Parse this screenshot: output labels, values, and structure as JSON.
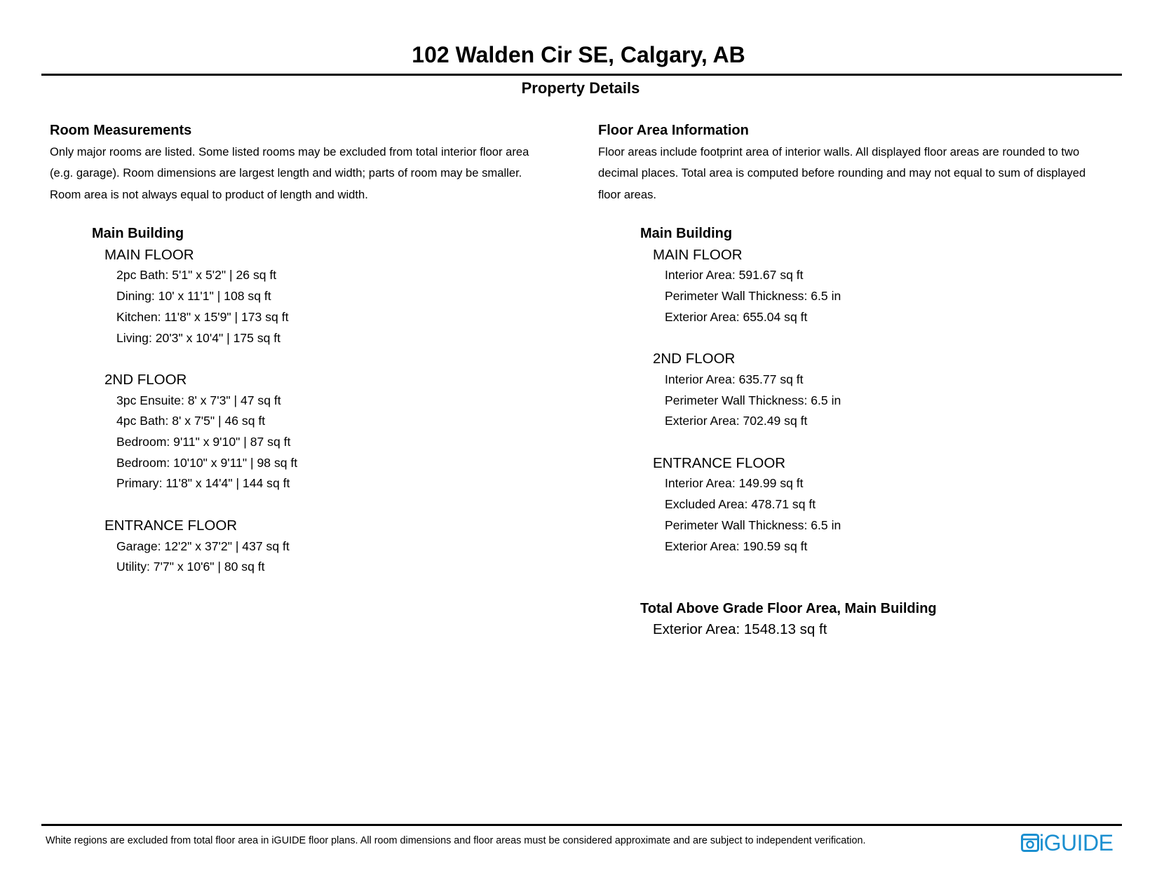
{
  "title": "102 Walden Cir SE, Calgary, AB",
  "subtitle": "Property Details",
  "room_measurements": {
    "heading": "Room Measurements",
    "paragraph_lines": [
      "Only major rooms are listed. Some listed rooms may be excluded from total interior floor area",
      "(e.g. garage). Room dimensions are largest length and width; parts of room may be smaller.",
      "Room area is not always equal to product of length and width."
    ],
    "building": "Main Building",
    "floors": [
      {
        "name": "MAIN FLOOR",
        "items": [
          "2pc Bath: 5'1\" x 5'2\" | 26 sq ft",
          "Dining: 10' x 11'1\" | 108 sq ft",
          "Kitchen: 11'8\" x 15'9\" | 173 sq ft",
          "Living: 20'3\" x 10'4\" | 175 sq ft"
        ]
      },
      {
        "name": "2ND FLOOR",
        "items": [
          "3pc Ensuite: 8' x 7'3\" | 47 sq ft",
          "4pc Bath: 8' x 7'5\" | 46 sq ft",
          "Bedroom: 9'11\" x 9'10\" | 87 sq ft",
          "Bedroom: 10'10\" x 9'11\" | 98 sq ft",
          "Primary: 11'8\" x 14'4\" | 144 sq ft"
        ]
      },
      {
        "name": "ENTRANCE FLOOR",
        "items": [
          "Garage: 12'2\" x 37'2\" | 437 sq ft",
          "Utility: 7'7\" x 10'6\" | 80 sq ft"
        ]
      }
    ]
  },
  "floor_area": {
    "heading": "Floor Area Information",
    "paragraph_lines": [
      "Floor areas include footprint area of interior walls. All displayed floor areas are rounded to two",
      "decimal places. Total area is computed before rounding and may not equal to sum of displayed",
      "floor areas."
    ],
    "building": "Main Building",
    "floors": [
      {
        "name": "MAIN FLOOR",
        "items": [
          "Interior Area: 591.67 sq ft",
          "Perimeter Wall Thickness: 6.5 in",
          "Exterior Area: 655.04 sq ft"
        ]
      },
      {
        "name": "2ND FLOOR",
        "items": [
          "Interior Area: 635.77 sq ft",
          "Perimeter Wall Thickness: 6.5 in",
          "Exterior Area: 702.49 sq ft"
        ]
      },
      {
        "name": "ENTRANCE FLOOR",
        "items": [
          "Interior Area: 149.99 sq ft",
          "Excluded Area: 478.71 sq ft",
          "Perimeter Wall Thickness: 6.5 in",
          "Exterior Area: 190.59 sq ft"
        ]
      }
    ],
    "total_heading": "Total Above Grade Floor Area, Main Building",
    "total_value": "Exterior Area: 1548.13 sq ft"
  },
  "footer": {
    "disclaimer": "White regions are excluded from total floor area in iGUIDE floor plans. All room dimensions and floor areas must be considered approximate and are subject to independent verification.",
    "logo_text": "iGUIDE",
    "logo_icon": "iguide-logo-icon",
    "brand_color": "#1b8fd0"
  }
}
